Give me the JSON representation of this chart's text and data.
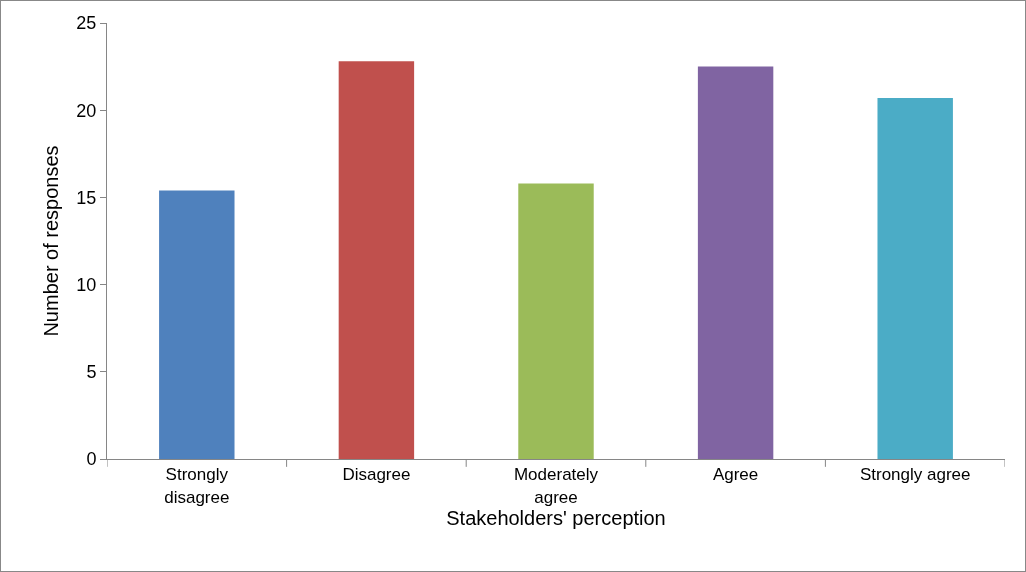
{
  "chart_data": {
    "type": "bar",
    "xlabel": "Stakeholders' perception",
    "ylabel": "Number of responses",
    "categories": [
      "Strongly\ndisagree",
      "Disagree",
      "Moderately\nagree",
      "Agree",
      "Strongly agree"
    ],
    "values": [
      15.4,
      22.8,
      15.8,
      22.5,
      20.7
    ],
    "colors": [
      "#4f81bd",
      "#c0504d",
      "#9bbb59",
      "#8064a2",
      "#4bacc6"
    ],
    "ylim": [
      0,
      25
    ],
    "yticks": [
      0,
      5,
      10,
      15,
      20,
      25
    ],
    "grid": false,
    "legend": false
  }
}
